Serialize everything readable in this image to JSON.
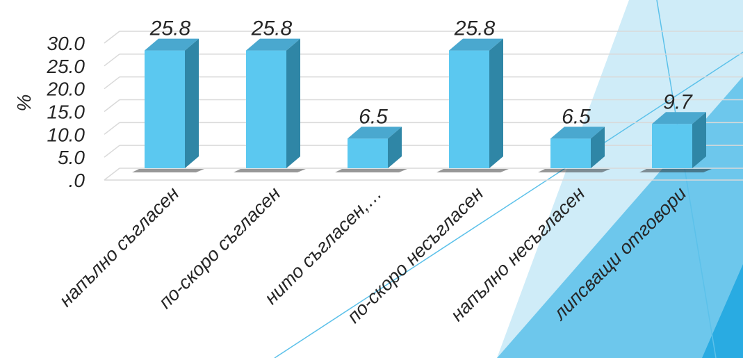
{
  "chart_data": {
    "type": "bar",
    "categories": [
      "напълно съгласен",
      "по-скоро съгласен",
      "нито съгласен,…",
      "по-скоро несъгласен",
      "напълно несъгласен",
      "липсващи отговори"
    ],
    "values": [
      25.8,
      25.8,
      6.5,
      25.8,
      6.5,
      9.7
    ],
    "data_labels": [
      "25.8",
      "25.8",
      "6.5",
      "25.8",
      "6.5",
      "9.7"
    ],
    "ylabel": "%",
    "xlabel": "",
    "ylim": [
      0,
      30
    ],
    "yticks": [
      ".0",
      "5.0",
      "10.0",
      "15.0",
      "20.0",
      "25.0",
      "30.0"
    ],
    "grid": true,
    "legend": "none",
    "colors": {
      "bar_front": "#5bc8f0",
      "bar_side": "#2f86a6",
      "bar_top": "#4aa8cf",
      "text": "#262626",
      "grid": "#d9d9d9",
      "accent": "#29abe2"
    }
  }
}
